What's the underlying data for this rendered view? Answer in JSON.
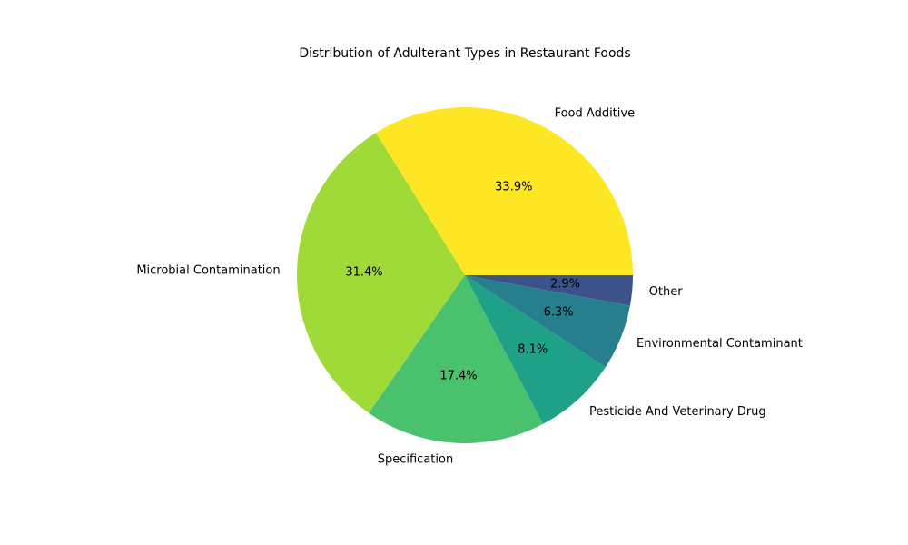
{
  "chart_data": {
    "type": "pie",
    "title": "Distribution of Adulterant Types in Restaurant Foods",
    "start_angle_deg": 0,
    "direction": "counterclockwise",
    "legend": "none",
    "slices": [
      {
        "label": "Food Additive",
        "value": 33.9,
        "pct_label": "33.9%",
        "color": "#fde725"
      },
      {
        "label": "Microbial Contamination",
        "value": 31.4,
        "pct_label": "31.4%",
        "color": "#a0da39"
      },
      {
        "label": "Specification",
        "value": 17.4,
        "pct_label": "17.4%",
        "color": "#4ac16d"
      },
      {
        "label": "Pesticide And Veterinary Drug",
        "value": 8.1,
        "pct_label": "8.1%",
        "color": "#1fa187"
      },
      {
        "label": "Environmental Contaminant",
        "value": 6.3,
        "pct_label": "6.3%",
        "color": "#277f8e"
      },
      {
        "label": "Other",
        "value": 2.9,
        "pct_label": "2.9%",
        "color": "#3b528b"
      }
    ]
  }
}
